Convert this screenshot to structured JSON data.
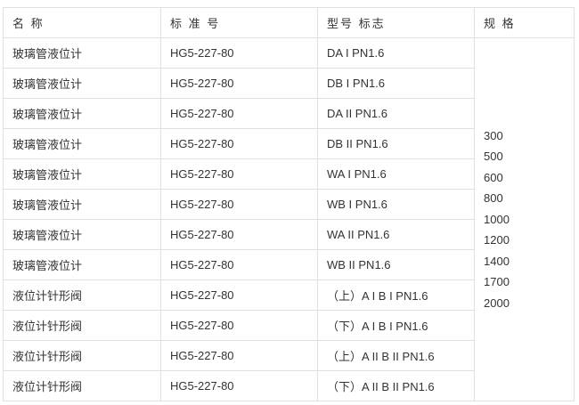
{
  "headers": [
    "名 称",
    "标 准 号",
    "型号 标志",
    "规 格"
  ],
  "rows": [
    [
      "玻璃管液位计",
      "HG5-227-80",
      "DA I PN1.6"
    ],
    [
      "玻璃管液位计",
      "HG5-227-80",
      "DB I PN1.6"
    ],
    [
      "玻璃管液位计",
      "HG5-227-80",
      "DA II PN1.6"
    ],
    [
      "玻璃管液位计",
      "HG5-227-80",
      "DB II PN1.6"
    ],
    [
      "玻璃管液位计",
      "HG5-227-80",
      "WA I PN1.6"
    ],
    [
      "玻璃管液位计",
      "HG5-227-80",
      "WB I PN1.6"
    ],
    [
      "玻璃管液位计",
      "HG5-227-80",
      "WA II PN1.6"
    ],
    [
      "玻璃管液位计",
      "HG5-227-80",
      "WB II PN1.6"
    ],
    [
      "液位计针形阀",
      "HG5-227-80",
      "（上）A I B I PN1.6"
    ],
    [
      "液位计针形阀",
      "HG5-227-80",
      "（下）A I B I PN1.6"
    ],
    [
      "液位计针形阀",
      "HG5-227-80",
      "（上）A II B II PN1.6"
    ],
    [
      "液位计针形阀",
      "HG5-227-80",
      "（下）A II B II PN1.6"
    ]
  ],
  "specs": [
    "300",
    "500",
    "600",
    "800",
    "1000",
    "1200",
    "1400",
    "1700",
    "2000"
  ]
}
